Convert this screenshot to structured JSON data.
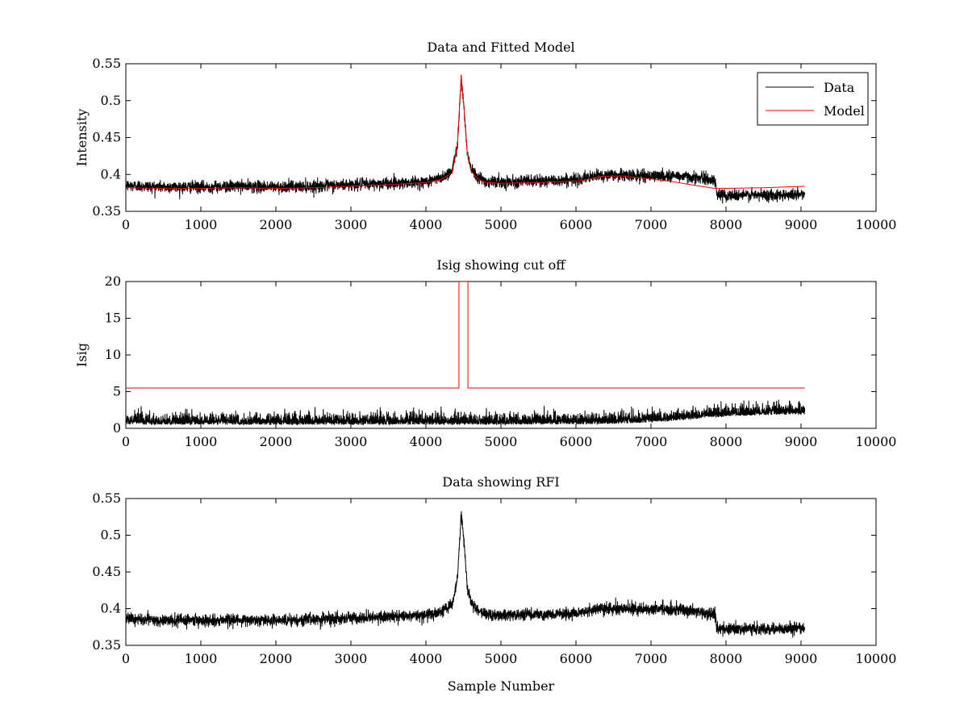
{
  "chart_data": [
    {
      "type": "line",
      "title": "Data and Fitted Model",
      "xlabel": "",
      "ylabel": "Intensity",
      "xlim": [
        0,
        10000
      ],
      "ylim": [
        0.35,
        0.55
      ],
      "xticks": [
        "0",
        "1000",
        "2000",
        "3000",
        "4000",
        "5000",
        "6000",
        "7000",
        "8000",
        "9000",
        "10000"
      ],
      "yticks": [
        "0.35",
        "0.4",
        "0.45",
        "0.5",
        "0.55"
      ],
      "grid": false,
      "legend": "top-right",
      "series": [
        {
          "name": "Data",
          "color": "#000000",
          "kind": "noisy",
          "x": [
            0,
            500,
            1000,
            1500,
            2000,
            2500,
            3000,
            3500,
            4000,
            4200,
            4350,
            4420,
            4470,
            4500,
            4550,
            4600,
            4700,
            4800,
            5000,
            5500,
            6000,
            6200,
            6300,
            6500,
            7000,
            7300,
            7500,
            7860,
            7880,
            8000,
            8500,
            9000,
            9050
          ],
          "y": [
            0.385,
            0.383,
            0.383,
            0.384,
            0.383,
            0.384,
            0.386,
            0.388,
            0.39,
            0.395,
            0.405,
            0.44,
            0.53,
            0.5,
            0.43,
            0.41,
            0.396,
            0.391,
            0.39,
            0.391,
            0.393,
            0.396,
            0.399,
            0.399,
            0.398,
            0.398,
            0.397,
            0.392,
            0.372,
            0.372,
            0.372,
            0.373,
            0.373
          ],
          "noise": 0.004
        },
        {
          "name": "Model",
          "color": "#ff0000",
          "kind": "smooth",
          "x": [
            0,
            500,
            1000,
            1500,
            2000,
            2500,
            3000,
            3500,
            4000,
            4200,
            4350,
            4420,
            4470,
            4500,
            4550,
            4600,
            4700,
            4800,
            5000,
            5500,
            6000,
            6200,
            6300,
            6600,
            7000,
            7300,
            7600,
            7860,
            7880,
            8500,
            9050
          ],
          "y": [
            0.382,
            0.381,
            0.381,
            0.382,
            0.381,
            0.382,
            0.384,
            0.386,
            0.389,
            0.393,
            0.402,
            0.44,
            0.535,
            0.5,
            0.43,
            0.405,
            0.393,
            0.389,
            0.388,
            0.389,
            0.391,
            0.394,
            0.397,
            0.398,
            0.394,
            0.39,
            0.385,
            0.381,
            0.381,
            0.382,
            0.384
          ]
        }
      ]
    },
    {
      "type": "line",
      "title": "Isig showing cut off",
      "xlabel": "",
      "ylabel": "Isig",
      "xlim": [
        0,
        10000
      ],
      "ylim": [
        0,
        20
      ],
      "xticks": [
        "0",
        "1000",
        "2000",
        "3000",
        "4000",
        "5000",
        "6000",
        "7000",
        "8000",
        "9000",
        "10000"
      ],
      "yticks": [
        "0",
        "5",
        "10",
        "15",
        "20"
      ],
      "grid": false,
      "series": [
        {
          "color": "#000000",
          "kind": "spiky",
          "x": [
            0,
            1000,
            2000,
            3000,
            4000,
            5000,
            6000,
            6500,
            7000,
            7500,
            8000,
            8500,
            9050
          ],
          "y": [
            0.8,
            0.8,
            0.8,
            0.8,
            0.8,
            0.8,
            0.85,
            0.9,
            1.1,
            1.5,
            1.9,
            2.1,
            2.2
          ],
          "noise": 1.0
        },
        {
          "color": "#ff0000",
          "kind": "step",
          "x": [
            0,
            4440,
            4440,
            4560,
            4560,
            9050
          ],
          "y": [
            5.5,
            5.5,
            20,
            20,
            5.5,
            5.5
          ]
        }
      ]
    },
    {
      "type": "line",
      "title": "Data showing RFI",
      "xlabel": "Sample Number",
      "ylabel": "",
      "xlim": [
        0,
        10000
      ],
      "ylim": [
        0.35,
        0.55
      ],
      "xticks": [
        "0",
        "1000",
        "2000",
        "3000",
        "4000",
        "5000",
        "6000",
        "7000",
        "8000",
        "9000",
        "10000"
      ],
      "yticks": [
        "0.35",
        "0.4",
        "0.45",
        "0.5",
        "0.55"
      ],
      "grid": false,
      "series": [
        {
          "color": "#000000",
          "kind": "noisy",
          "x": [
            0,
            500,
            1000,
            1500,
            2000,
            2500,
            3000,
            3500,
            4000,
            4200,
            4350,
            4420,
            4470,
            4500,
            4550,
            4600,
            4700,
            4800,
            5000,
            5500,
            6000,
            6200,
            6300,
            6500,
            7000,
            7300,
            7500,
            7860,
            7880,
            8000,
            8500,
            9000,
            9050
          ],
          "y": [
            0.386,
            0.384,
            0.384,
            0.385,
            0.384,
            0.385,
            0.387,
            0.389,
            0.391,
            0.396,
            0.406,
            0.44,
            0.53,
            0.5,
            0.43,
            0.41,
            0.397,
            0.392,
            0.391,
            0.392,
            0.394,
            0.397,
            0.4,
            0.4,
            0.399,
            0.399,
            0.398,
            0.392,
            0.372,
            0.372,
            0.372,
            0.373,
            0.373
          ],
          "noise": 0.004
        }
      ]
    }
  ]
}
